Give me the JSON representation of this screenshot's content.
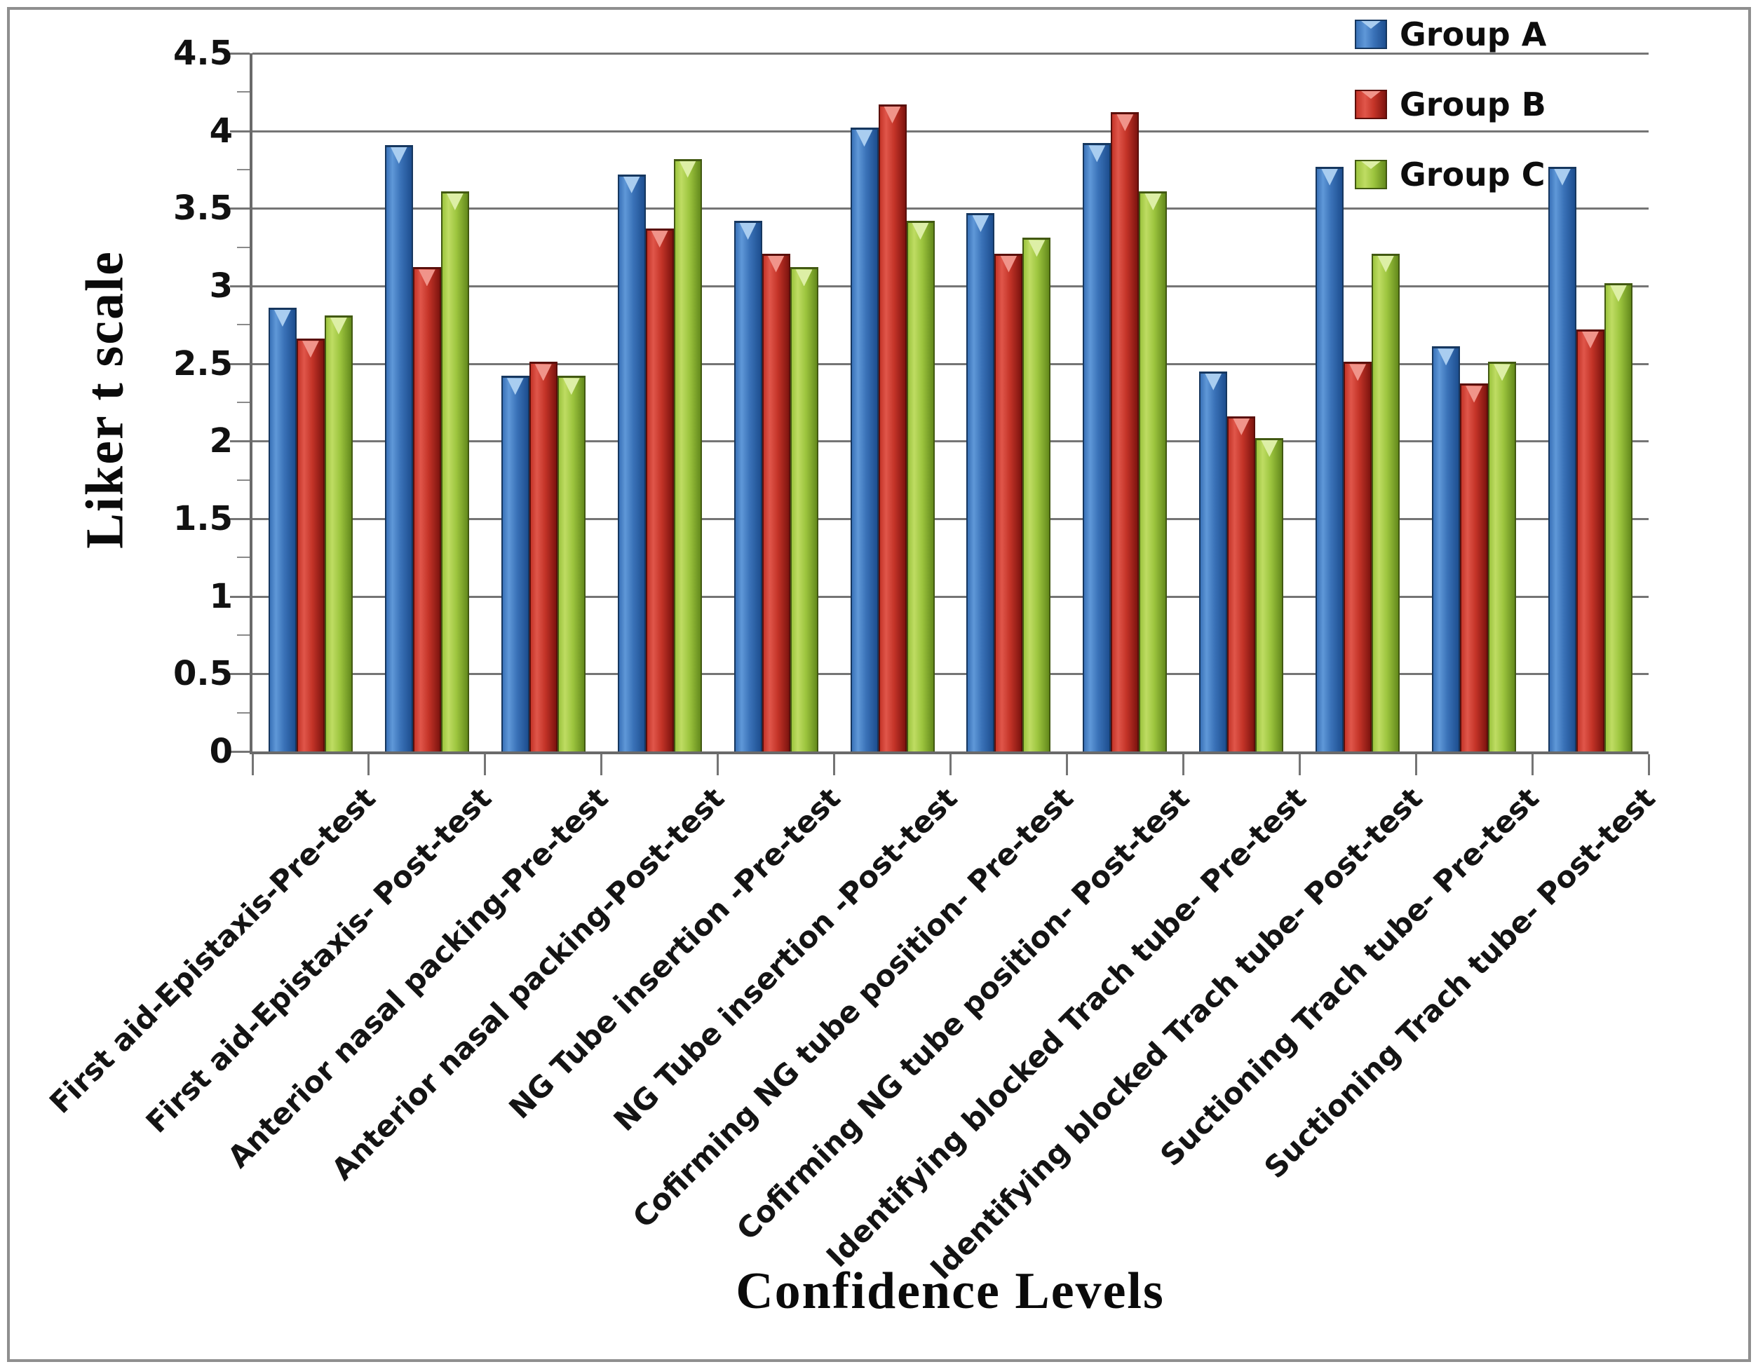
{
  "chart_data": {
    "type": "bar",
    "title": "",
    "xlabel": "Confidence Levels",
    "ylabel": "Liker t scale",
    "ylim": [
      0,
      4.5
    ],
    "ytick_step": 0.5,
    "y_tick_labels": [
      "0",
      "0.5",
      "1",
      "1.5",
      "2",
      "2.5",
      "3",
      "3.5",
      "4",
      "4.5"
    ],
    "grid": true,
    "gridline_color": "#757575",
    "legend_position": "top-right",
    "categories": [
      "First aid-Epistaxis-Pre-test",
      "First aid-Epistaxis- Post-test",
      "Anterior nasal packing-Pre-test",
      "Anterior nasal packing-Post-test",
      "NG Tube insertion -Pre-test",
      "NG Tube insertion -Post-test",
      "Cofirming NG tube position- Pre-test",
      "Cofirming NG tube position- Post-test",
      "Identifying blocked Trach tube- Pre-test",
      "Identifying blocked Trach tube- Post-test",
      "Suctioning Trach tube- Pre-test",
      "Suctioning Trach tube- Post-test"
    ],
    "series": [
      {
        "name": "Group A",
        "values": [
          2.86,
          3.91,
          2.42,
          3.72,
          3.42,
          4.02,
          3.47,
          3.92,
          2.45,
          3.77,
          2.61,
          3.77
        ],
        "colors": {
          "light": "#5f98d8",
          "main": "#3a72b8",
          "dark": "#1d4e8f",
          "edge": "#16375f",
          "notch": "#a9cdf0"
        }
      },
      {
        "name": "Group B",
        "values": [
          2.66,
          3.12,
          2.51,
          3.37,
          3.21,
          4.17,
          3.21,
          4.12,
          2.16,
          2.51,
          2.37,
          2.72
        ],
        "colors": {
          "light": "#e0564a",
          "main": "#c43428",
          "dark": "#7e140f",
          "edge": "#5a0f0b",
          "notch": "#f0948a"
        }
      },
      {
        "name": "Group C",
        "values": [
          2.81,
          3.61,
          2.42,
          3.82,
          3.12,
          3.42,
          3.31,
          3.61,
          2.02,
          3.21,
          2.51,
          3.02
        ],
        "colors": {
          "light": "#bfdc63",
          "main": "#9cc43e",
          "dark": "#648a1c",
          "edge": "#425912",
          "notch": "#ddefa6"
        }
      }
    ]
  }
}
